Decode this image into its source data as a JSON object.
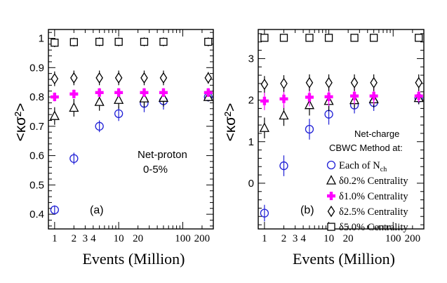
{
  "chart_data": [
    {
      "panel": "(a)",
      "type": "scatter",
      "ylabel": "<κσ²>",
      "xlabel": "Events (Million)",
      "xscale": "log",
      "xlim": [
        0.8,
        300
      ],
      "ylim": [
        0.35,
        1.03
      ],
      "y_ticks": [
        0.4,
        0.5,
        0.6,
        0.7,
        0.8,
        0.9,
        1
      ],
      "y_tick_labels": [
        "0.4",
        "0.5",
        "0.6",
        "0.7",
        "0.8",
        "0.9",
        "1"
      ],
      "x_tick_labels": [
        "1",
        "2",
        "3",
        "4",
        "10",
        "20",
        "100",
        "200"
      ],
      "x_tick_values": [
        1,
        2,
        3,
        4,
        10,
        20,
        100,
        200
      ],
      "annotations": [
        "Net-proton",
        "0-5%"
      ],
      "series": [
        {
          "marker": "circle",
          "color": "#1f1fd6",
          "x": [
            1,
            2,
            5,
            10,
            25,
            50,
            250
          ],
          "y": [
            0.415,
            0.59,
            0.7,
            0.743,
            0.778,
            0.787,
            0.8
          ],
          "err": [
            0.015,
            0.02,
            0.02,
            0.025,
            0.03,
            0.03,
            0.015
          ]
        },
        {
          "marker": "triangle",
          "color": "#000000",
          "x": [
            1,
            2,
            5,
            10,
            25,
            50,
            250
          ],
          "y": [
            0.735,
            0.763,
            0.783,
            0.79,
            0.795,
            0.797,
            0.8
          ],
          "err": [
            0.03,
            0.03,
            0.03,
            0.03,
            0.03,
            0.03,
            0.015
          ]
        },
        {
          "marker": "plus",
          "color": "#ff00ff",
          "x": [
            1,
            2,
            5,
            10,
            25,
            50,
            250
          ],
          "y": [
            0.8,
            0.81,
            0.815,
            0.815,
            0.815,
            0.815,
            0.815
          ],
          "err": [
            0.015,
            0.015,
            0.015,
            0.015,
            0.015,
            0.015,
            0.015
          ]
        },
        {
          "marker": "diamond",
          "color": "#000000",
          "x": [
            1,
            2,
            5,
            10,
            25,
            50,
            250
          ],
          "y": [
            0.862,
            0.865,
            0.865,
            0.865,
            0.865,
            0.865,
            0.865
          ],
          "err": [
            0.025,
            0.025,
            0.025,
            0.025,
            0.025,
            0.025,
            0.02
          ]
        },
        {
          "marker": "square",
          "color": "#000000",
          "x": [
            1,
            2,
            5,
            10,
            25,
            50,
            250
          ],
          "y": [
            0.985,
            0.987,
            0.988,
            0.988,
            0.988,
            0.988,
            0.988
          ],
          "err": [
            0.015,
            0.015,
            0.015,
            0.015,
            0.015,
            0.015,
            0.015
          ]
        }
      ]
    },
    {
      "panel": "(b)",
      "type": "scatter",
      "ylabel": "<κσ²>",
      "xlabel": "Events (Million)",
      "xscale": "log",
      "xlim": [
        0.8,
        300
      ],
      "ylim": [
        -1.1,
        3.7
      ],
      "y_ticks": [
        0,
        1,
        2,
        3
      ],
      "y_tick_labels": [
        "0",
        "1",
        "2",
        "3"
      ],
      "x_tick_labels": [
        "1",
        "2",
        "3",
        "4",
        "10",
        "20",
        "100",
        "200"
      ],
      "x_tick_values": [
        1,
        2,
        3,
        4,
        10,
        20,
        100,
        200
      ],
      "legend": {
        "title_lines": [
          "Net-charge",
          "CBWC Method at:"
        ],
        "entries": [
          {
            "marker": "circle",
            "color": "#1f1fd6",
            "label": "Each of N",
            "sub": "ch"
          },
          {
            "marker": "triangle",
            "color": "#000000",
            "label": "δ0.2% Centrality"
          },
          {
            "marker": "plus",
            "color": "#ff00ff",
            "label": "δ1.0% Centrality"
          },
          {
            "marker": "diamond",
            "color": "#000000",
            "label": "δ2.5% Centrality"
          },
          {
            "marker": "square",
            "color": "#000000",
            "label": "δ5.0% Centrality"
          }
        ]
      },
      "series": [
        {
          "marker": "circle",
          "color": "#1f1fd6",
          "x": [
            1,
            2,
            5,
            10,
            25,
            50,
            250
          ],
          "y": [
            -0.72,
            0.42,
            1.3,
            1.66,
            1.88,
            1.94,
            2.05
          ],
          "err": [
            0.2,
            0.25,
            0.25,
            0.25,
            0.2,
            0.2,
            0.15
          ]
        },
        {
          "marker": "triangle",
          "color": "#000000",
          "x": [
            1,
            2,
            5,
            10,
            25,
            50,
            250
          ],
          "y": [
            1.33,
            1.63,
            1.88,
            1.98,
            2.0,
            2.02,
            2.05
          ],
          "err": [
            0.25,
            0.25,
            0.25,
            0.25,
            0.2,
            0.2,
            0.15
          ]
        },
        {
          "marker": "plus",
          "color": "#ff00ff",
          "x": [
            1,
            2,
            5,
            10,
            25,
            50,
            250
          ],
          "y": [
            1.98,
            2.03,
            2.07,
            2.08,
            2.1,
            2.1,
            2.1
          ],
          "err": [
            0.22,
            0.22,
            0.22,
            0.22,
            0.2,
            0.2,
            0.15
          ]
        },
        {
          "marker": "diamond",
          "color": "#000000",
          "x": [
            1,
            2,
            5,
            10,
            25,
            50,
            250
          ],
          "y": [
            2.38,
            2.4,
            2.42,
            2.42,
            2.42,
            2.42,
            2.42
          ],
          "err": [
            0.2,
            0.2,
            0.2,
            0.2,
            0.2,
            0.2,
            0.2
          ]
        },
        {
          "marker": "square",
          "color": "#000000",
          "x": [
            1,
            2,
            5,
            10,
            25,
            50,
            250
          ],
          "y": [
            3.5,
            3.5,
            3.5,
            3.5,
            3.5,
            3.5,
            3.5
          ],
          "err": [
            0.08,
            0.08,
            0.08,
            0.08,
            0.08,
            0.08,
            0.08
          ]
        }
      ]
    }
  ]
}
